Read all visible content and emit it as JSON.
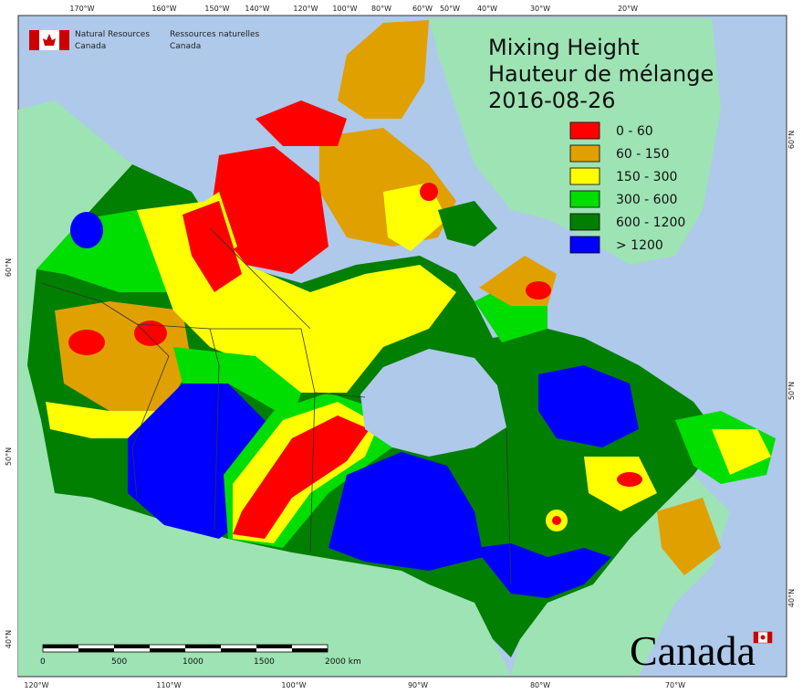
{
  "header": {
    "agency_en": [
      "Natural Resources",
      "Canada"
    ],
    "agency_fr": [
      "Ressources naturelles",
      "Canada"
    ]
  },
  "title": [
    "Mixing Height",
    "Hauteur de mélange",
    "2016-08-26"
  ],
  "legend": {
    "items": [
      {
        "label": "0 - 60",
        "color": "#ff0000"
      },
      {
        "label": "60 - 150",
        "color": "#e0a000"
      },
      {
        "label": "150 - 300",
        "color": "#ffff00"
      },
      {
        "label": "300 - 600",
        "color": "#00dd00"
      },
      {
        "label": "600 - 1200",
        "color": "#007f00"
      },
      {
        "label": "> 1200",
        "color": "#0000ff"
      }
    ]
  },
  "graticule": {
    "top": [
      "170°W",
      "160°W",
      "150°W",
      "140°W",
      "120°W",
      "100°W",
      "80°W",
      "60°W",
      "50°W",
      "40°W",
      "30°W",
      "20°W"
    ],
    "bottom": [
      "120°W",
      "110°W",
      "100°W",
      "90°W",
      "80°W",
      "70°W"
    ],
    "left": [
      "60°N",
      "50°N",
      "40°N"
    ],
    "right": [
      "60°N",
      "50°N",
      "40°N"
    ]
  },
  "scale_bar": [
    "0",
    "500",
    "1000",
    "1500",
    "2000 km"
  ],
  "wordmark": "Canada"
}
